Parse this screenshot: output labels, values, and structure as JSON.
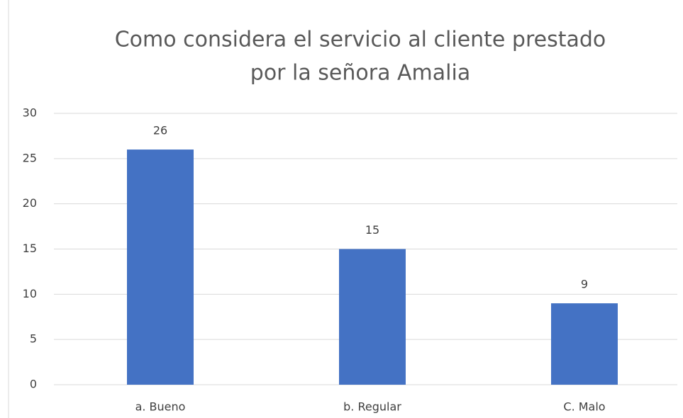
{
  "chart_data": {
    "type": "bar",
    "title": [
      "Como considera el servicio al cliente prestado",
      "por la señora Amalia"
    ],
    "categories": [
      "a. Bueno",
      "b. Regular",
      "C. Malo"
    ],
    "values": [
      26,
      15,
      9
    ],
    "color": "#4472c4",
    "ylim": [
      0,
      30
    ],
    "yticks": [
      0,
      5,
      10,
      15,
      20,
      25,
      30
    ],
    "grid": true
  }
}
